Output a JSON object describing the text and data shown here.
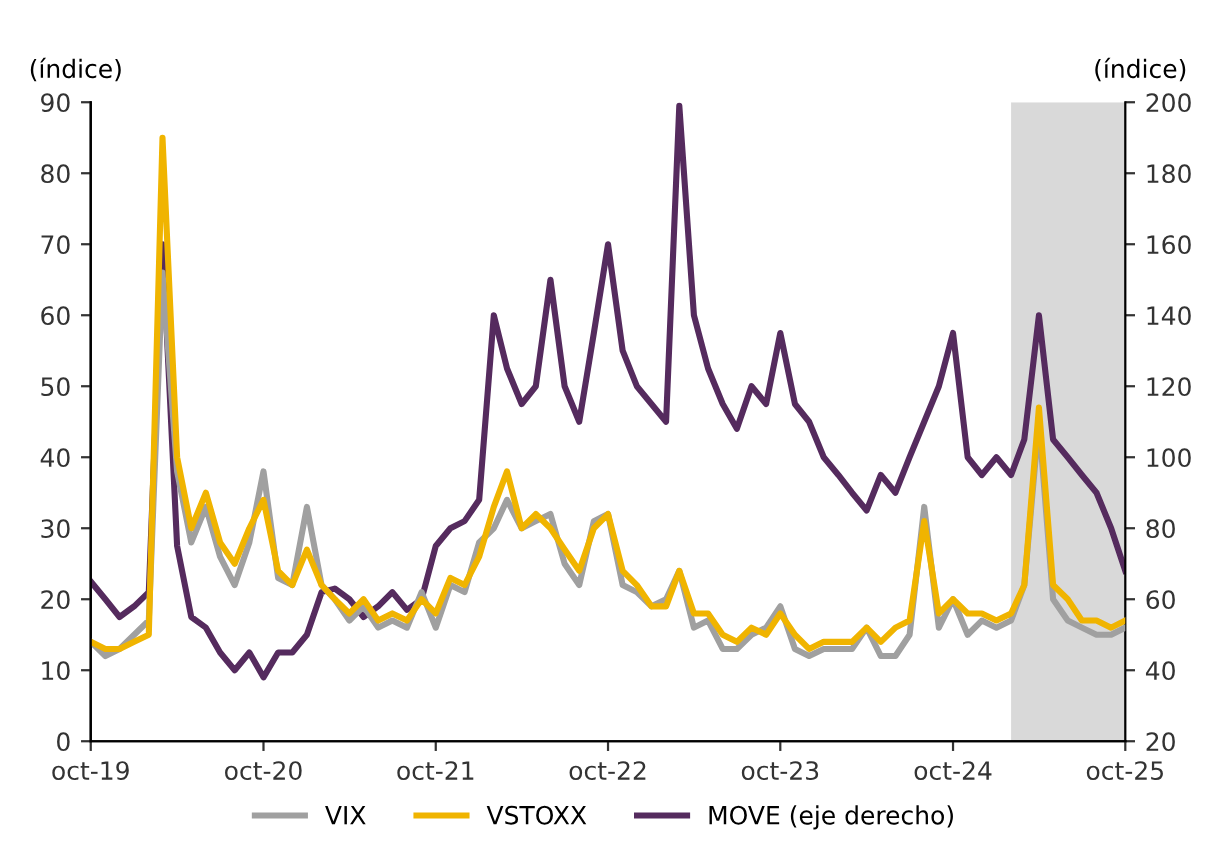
{
  "chart_data": {
    "type": "line",
    "ylabel": "(índice)",
    "y2label": "(índice)",
    "x": [
      "2019-10",
      "2019-11",
      "2019-12",
      "2020-01",
      "2020-02",
      "2020-03",
      "2020-04",
      "2020-05",
      "2020-06",
      "2020-07",
      "2020-08",
      "2020-09",
      "2020-10",
      "2020-11",
      "2020-12",
      "2021-01",
      "2021-02",
      "2021-03",
      "2021-04",
      "2021-05",
      "2021-06",
      "2021-07",
      "2021-08",
      "2021-09",
      "2021-10",
      "2021-11",
      "2021-12",
      "2022-01",
      "2022-02",
      "2022-03",
      "2022-04",
      "2022-05",
      "2022-06",
      "2022-07",
      "2022-08",
      "2022-09",
      "2022-10",
      "2022-11",
      "2022-12",
      "2023-01",
      "2023-02",
      "2023-03",
      "2023-04",
      "2023-05",
      "2023-06",
      "2023-07",
      "2023-08",
      "2023-09",
      "2023-10",
      "2023-11",
      "2023-12",
      "2024-01",
      "2024-02",
      "2024-03",
      "2024-04",
      "2024-05",
      "2024-06",
      "2024-07",
      "2024-08",
      "2024-09",
      "2024-10",
      "2024-11",
      "2024-12",
      "2025-01",
      "2025-02",
      "2025-03",
      "2025-04",
      "2025-05",
      "2025-06",
      "2025-07",
      "2025-08",
      "2025-09",
      "2025-10"
    ],
    "series": [
      {
        "name": "VIX",
        "color": "#a0a0a0",
        "values": [
          14,
          12,
          13,
          15,
          17,
          66,
          38,
          28,
          33,
          26,
          22,
          28,
          38,
          23,
          22,
          33,
          22,
          20,
          17,
          19,
          16,
          17,
          16,
          21,
          16,
          22,
          21,
          28,
          30,
          34,
          30,
          31,
          32,
          25,
          22,
          31,
          32,
          22,
          21,
          19,
          20,
          24,
          16,
          17,
          13,
          13,
          15,
          16,
          19,
          13,
          12,
          13,
          13,
          13,
          16,
          12,
          12,
          15,
          33,
          16,
          20,
          15,
          17,
          16,
          17,
          22,
          45,
          20,
          17,
          16,
          15,
          15,
          16
        ]
      },
      {
        "name": "VSTOXX",
        "color": "#f0b400",
        "values": [
          14,
          13,
          13,
          14,
          15,
          85,
          40,
          30,
          35,
          28,
          25,
          30,
          34,
          24,
          22,
          27,
          22,
          20,
          18,
          20,
          17,
          18,
          17,
          20,
          18,
          23,
          22,
          26,
          33,
          38,
          30,
          32,
          30,
          27,
          24,
          30,
          32,
          24,
          22,
          19,
          19,
          24,
          18,
          18,
          15,
          14,
          16,
          15,
          18,
          15,
          13,
          14,
          14,
          14,
          16,
          14,
          16,
          17,
          31,
          18,
          20,
          18,
          18,
          17,
          18,
          22,
          47,
          22,
          20,
          17,
          17,
          16,
          17
        ]
      },
      {
        "name": "MOVE (eje derecho)",
        "color": "#552b5e",
        "axis": "y2",
        "values": [
          65,
          60,
          55,
          58,
          62,
          160,
          75,
          55,
          52,
          45,
          40,
          45,
          38,
          45,
          45,
          50,
          62,
          63,
          60,
          55,
          58,
          62,
          57,
          60,
          75,
          80,
          82,
          88,
          140,
          125,
          115,
          120,
          150,
          120,
          110,
          135,
          160,
          130,
          120,
          115,
          110,
          199,
          140,
          125,
          115,
          108,
          120,
          115,
          135,
          115,
          110,
          100,
          95,
          90,
          85,
          95,
          90,
          100,
          110,
          120,
          135,
          100,
          95,
          100,
          95,
          105,
          140,
          105,
          100,
          95,
          90,
          80,
          68
        ]
      }
    ],
    "ylim": [
      0,
      90
    ],
    "yticks": [
      0,
      10,
      20,
      30,
      40,
      50,
      60,
      70,
      80,
      90
    ],
    "y2lim": [
      20,
      200
    ],
    "y2ticks": [
      20,
      40,
      60,
      80,
      100,
      120,
      140,
      160,
      180,
      200
    ],
    "xlim": [
      "2019-10-01",
      "2025-10-01"
    ],
    "xticks": [
      {
        "value": "2019-10-01",
        "label": "oct-19"
      },
      {
        "value": "2020-10-01",
        "label": "oct-20"
      },
      {
        "value": "2021-10-01",
        "label": "oct-21"
      },
      {
        "value": "2022-10-01",
        "label": "oct-22"
      },
      {
        "value": "2023-10-01",
        "label": "oct-23"
      },
      {
        "value": "2024-10-01",
        "label": "oct-24"
      },
      {
        "value": "2025-10-01",
        "label": "oct-25"
      }
    ],
    "bands": [
      {
        "axis": "x",
        "from": "2025-02-01",
        "to": "2025-10-01",
        "color": "#d9d9d9"
      }
    ],
    "legend": "bottom",
    "grid": false,
    "line_style": "solid",
    "marker": "none"
  }
}
